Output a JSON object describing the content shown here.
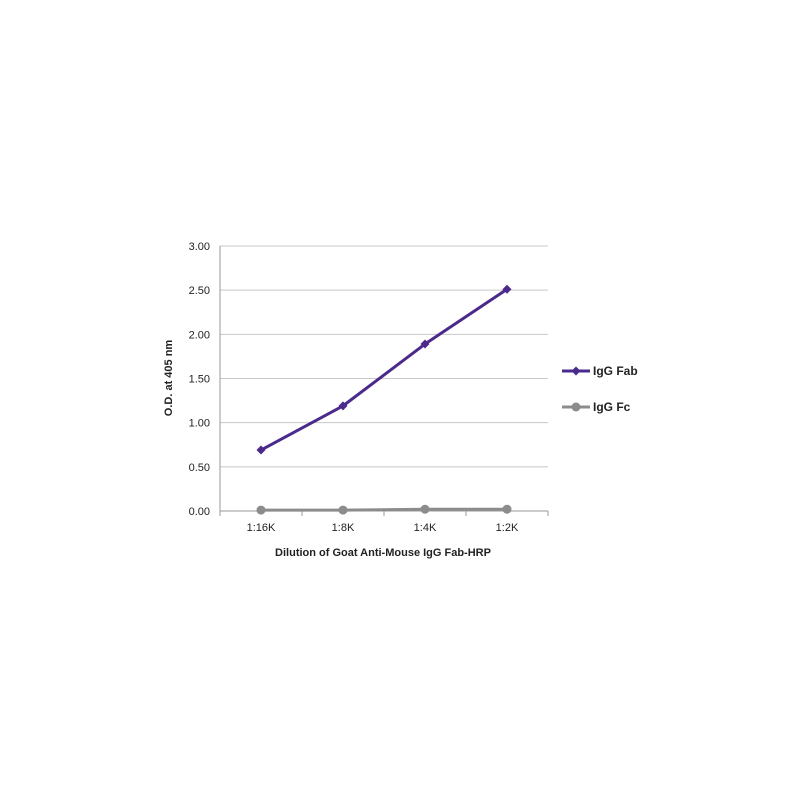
{
  "chart_data": {
    "type": "line",
    "title": "",
    "xlabel": "Dilution of Goat Anti-Mouse IgG Fab-HRP",
    "ylabel": "O.D. at 405 nm",
    "categories": [
      "1:16K",
      "1:8K",
      "1:4K",
      "1:2K"
    ],
    "ylim": [
      0,
      3
    ],
    "yticks": [
      "0.00",
      "0.50",
      "1.00",
      "1.50",
      "2.00",
      "2.50",
      "3.00"
    ],
    "grid": true,
    "legend_position": "right",
    "series": [
      {
        "name": "IgG Fab",
        "values": [
          0.69,
          1.19,
          1.89,
          2.51
        ],
        "color": "#4b2a8c",
        "marker": "diamond"
      },
      {
        "name": "IgG Fc",
        "values": [
          0.01,
          0.01,
          0.02,
          0.02
        ],
        "color": "#8c8c8c",
        "marker": "circle"
      }
    ]
  }
}
